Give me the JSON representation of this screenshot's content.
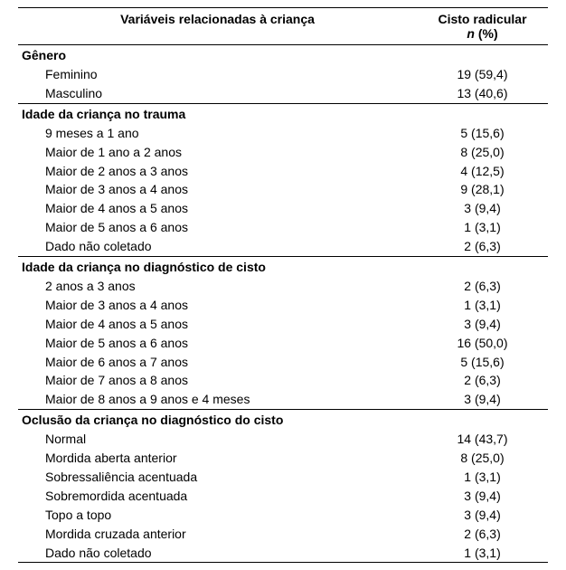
{
  "header": {
    "label": "Variáveis relacionadas à criança",
    "value_line1": "Cisto radicular",
    "value_line2_italic": "n",
    "value_line2_rest": " (%)"
  },
  "sections": [
    {
      "title": "Gênero",
      "rows": [
        {
          "label": "Feminino",
          "value": "19 (59,4)"
        },
        {
          "label": "Masculino",
          "value": "13 (40,6)"
        }
      ]
    },
    {
      "title": "Idade da criança no trauma",
      "rows": [
        {
          "label": "9 meses a 1 ano",
          "value": "5 (15,6)"
        },
        {
          "label": "Maior de 1 ano a 2 anos",
          "value": "8 (25,0)"
        },
        {
          "label": "Maior de 2 anos a 3 anos",
          "value": "4 (12,5)"
        },
        {
          "label": "Maior de 3 anos a 4 anos",
          "value": "9 (28,1)"
        },
        {
          "label": "Maior de 4 anos a 5 anos",
          "value": "3 (9,4)"
        },
        {
          "label": "Maior de 5 anos a 6 anos",
          "value": "1 (3,1)"
        },
        {
          "label": "Dado não coletado",
          "value": "2 (6,3)"
        }
      ]
    },
    {
      "title": "Idade da criança no diagnóstico de cisto",
      "rows": [
        {
          "label": "2 anos a 3 anos",
          "value": "2 (6,3)"
        },
        {
          "label": "Maior de 3 anos a 4 anos",
          "value": "1 (3,1)"
        },
        {
          "label": "Maior de 4 anos a 5 anos",
          "value": "3 (9,4)"
        },
        {
          "label": "Maior de 5 anos a 6 anos",
          "value": "16 (50,0)"
        },
        {
          "label": "Maior de 6 anos a 7 anos",
          "value": "5 (15,6)"
        },
        {
          "label": "Maior de 7 anos a 8 anos",
          "value": "2 (6,3)"
        },
        {
          "label": "Maior de 8 anos a 9 anos e 4 meses",
          "value": "3 (9,4)"
        }
      ]
    },
    {
      "title": "Oclusão da criança no diagnóstico do cisto",
      "rows": [
        {
          "label": "Normal",
          "value": "14 (43,7)"
        },
        {
          "label": "Mordida aberta anterior",
          "value": "8 (25,0)"
        },
        {
          "label": "Sobressaliência acentuada",
          "value": "1 (3,1)"
        },
        {
          "label": "Sobremordida acentuada",
          "value": "3 (9,4)"
        },
        {
          "label": "Topo a topo",
          "value": "3 (9,4)"
        },
        {
          "label": "Mordida cruzada anterior",
          "value": "2 (6,3)"
        },
        {
          "label": "Dado não coletado",
          "value": "1 (3,1)"
        }
      ]
    }
  ]
}
